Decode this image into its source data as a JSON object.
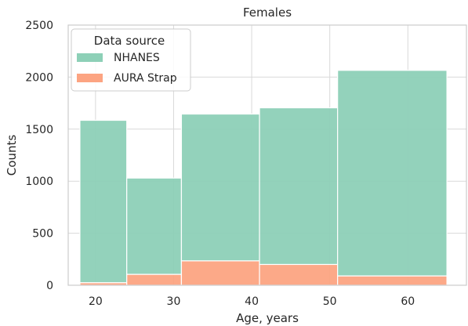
{
  "chart_data": {
    "type": "bar",
    "stacked": true,
    "title": "Females",
    "xlabel": "Age, years",
    "ylabel": "Counts",
    "xlim": [
      16.5,
      67.5
    ],
    "ylim": [
      0,
      2500
    ],
    "xticks": [
      20,
      30,
      40,
      50,
      60
    ],
    "yticks": [
      0,
      500,
      1000,
      1500,
      2000,
      2500
    ],
    "grid": true,
    "legend": {
      "title": "Data source",
      "placement": "top-left"
    },
    "bins": [
      {
        "x0": 18,
        "x1": 24
      },
      {
        "x0": 24,
        "x1": 31
      },
      {
        "x0": 31,
        "x1": 41
      },
      {
        "x0": 41,
        "x1": 51
      },
      {
        "x0": 51,
        "x1": 65
      }
    ],
    "series": [
      {
        "name": "AURA Strap",
        "color": "#fca482",
        "values": [
          25,
          105,
          235,
          200,
          90
        ]
      },
      {
        "name": "NHANES",
        "color": "#8dd0b7",
        "values": [
          1560,
          925,
          1410,
          1505,
          1975
        ]
      }
    ],
    "legend_order": [
      "NHANES",
      "AURA Strap"
    ]
  }
}
